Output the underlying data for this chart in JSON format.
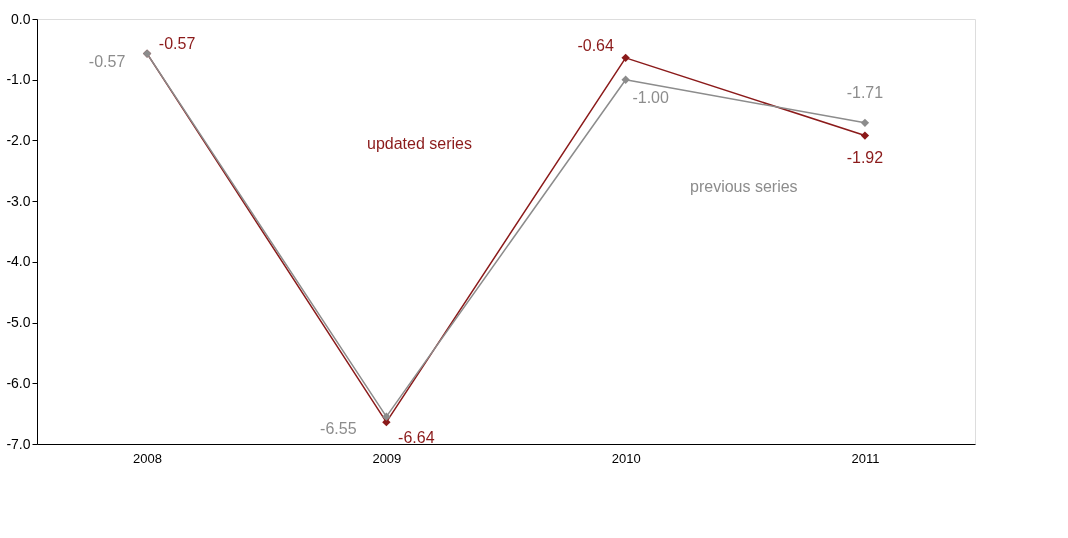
{
  "chart_data": {
    "type": "line",
    "categories": [
      "2008",
      "2009",
      "2010",
      "2011"
    ],
    "series": [
      {
        "name": "updated series",
        "color": "#8b1a1a",
        "values": [
          -0.57,
          -6.64,
          -0.64,
          -1.92
        ],
        "value_labels": [
          "-0.57",
          "-6.64",
          "-0.64",
          "-1.92"
        ]
      },
      {
        "name": "previous series",
        "color": "#8c8c8c",
        "values": [
          -0.57,
          -6.55,
          -1.0,
          -1.71
        ],
        "value_labels": [
          "-0.57",
          "-6.55",
          "-1.00",
          "-1.71"
        ]
      }
    ],
    "ylim": [
      -7,
      0
    ],
    "yticks": [
      {
        "value": 0,
        "label": "0.0"
      },
      {
        "value": -1,
        "label": "-1.0"
      },
      {
        "value": -2,
        "label": "-2.0"
      },
      {
        "value": -3,
        "label": "-3.0"
      },
      {
        "value": -4,
        "label": "-4.0"
      },
      {
        "value": -5,
        "label": "-5.0"
      },
      {
        "value": -6,
        "label": "-6.0"
      },
      {
        "value": -7,
        "label": "-7.0"
      }
    ],
    "marker": "diamond",
    "line_style": "solid",
    "grid": false,
    "legend": false
  }
}
